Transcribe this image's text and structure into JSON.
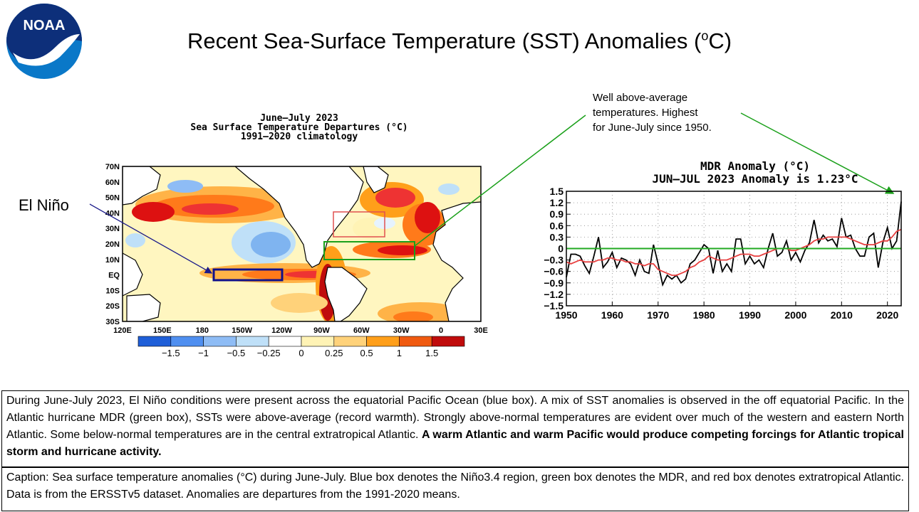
{
  "logo": {
    "text": "NOAA"
  },
  "title": {
    "text": "Recent Sea-Surface Temperature (SST) Anomalies (",
    "sup": "o",
    "end": "C)"
  },
  "map": {
    "title_lines": [
      "June–July 2023",
      "Sea Surface Temperature Departures (°C)",
      "1991–2020 climatology"
    ],
    "lat_labels": [
      "70N",
      "60N",
      "50N",
      "40N",
      "30N",
      "20N",
      "10N",
      "EQ",
      "10S",
      "20S",
      "30S"
    ],
    "lon_labels": [
      "120E",
      "150E",
      "180",
      "150W",
      "120W",
      "90W",
      "60W",
      "30W",
      "0",
      "30E"
    ],
    "colorbar": {
      "colors": [
        "#1f5fd8",
        "#4f8ff0",
        "#8ebcf5",
        "#bfe0f8",
        "#ffffff",
        "#fff3b5",
        "#ffd27a",
        "#ff9f1a",
        "#f05a10",
        "#c00c0c"
      ],
      "labels": [
        "−1.5",
        "−1",
        "−0.5",
        "−0.25",
        "0",
        "0.25",
        "0.5",
        "1",
        "1.5"
      ]
    },
    "legend_boxes": [
      "blue: Niño3.4",
      "green: MDR",
      "red: extratropical Atlantic"
    ]
  },
  "elnino_label": "El Niño",
  "note": {
    "lines": [
      "Well above-average",
      "temperatures. Highest",
      "for June-July since 1950."
    ]
  },
  "chart_data": {
    "type": "line",
    "title": "MDR Anomaly (°C)",
    "subtitle": "JUN–JUL 2023 Anomaly is 1.23°C",
    "xlabel": "",
    "ylabel": "",
    "xlim": [
      1950,
      2023
    ],
    "ylim": [
      -1.5,
      1.5
    ],
    "yticks": [
      "1.5",
      "1.2",
      "0.9",
      "0.6",
      "0.3",
      "0",
      "−0.3",
      "−0.6",
      "−0.9",
      "−1.2",
      "−1.5"
    ],
    "xticks": [
      "1950",
      "1960",
      "1970",
      "1980",
      "1990",
      "2000",
      "2010",
      "2020"
    ],
    "series": [
      {
        "color": "#000000",
        "x": [
          1950,
          1951,
          1952,
          1953,
          1954,
          1955,
          1956,
          1957,
          1958,
          1959,
          1960,
          1961,
          1962,
          1963,
          1964,
          1965,
          1966,
          1967,
          1968,
          1969,
          1970,
          1971,
          1972,
          1973,
          1974,
          1975,
          1976,
          1977,
          1978,
          1979,
          1980,
          1981,
          1982,
          1983,
          1984,
          1985,
          1986,
          1987,
          1988,
          1989,
          1990,
          1991,
          1992,
          1993,
          1994,
          1995,
          1996,
          1997,
          1998,
          1999,
          2000,
          2001,
          2002,
          2003,
          2004,
          2005,
          2006,
          2007,
          2008,
          2009,
          2010,
          2011,
          2012,
          2013,
          2014,
          2015,
          2016,
          2017,
          2018,
          2019,
          2020,
          2021,
          2022,
          2023
        ],
        "values": [
          -0.75,
          -0.15,
          -0.15,
          -0.2,
          -0.45,
          -0.65,
          -0.2,
          0.3,
          -0.5,
          -0.35,
          -0.1,
          -0.5,
          -0.25,
          -0.3,
          -0.4,
          -0.7,
          -0.3,
          -0.6,
          -0.65,
          0.1,
          -0.4,
          -0.95,
          -0.7,
          -0.8,
          -0.7,
          -0.9,
          -0.8,
          -0.4,
          -0.3,
          -0.1,
          0.1,
          0.0,
          -0.65,
          -0.05,
          -0.6,
          -0.4,
          -0.6,
          0.25,
          0.25,
          -0.4,
          -0.2,
          -0.4,
          -0.3,
          -0.5,
          0.0,
          0.4,
          -0.2,
          -0.1,
          0.2,
          -0.3,
          -0.1,
          -0.35,
          -0.05,
          0.15,
          0.75,
          0.15,
          0.35,
          0.2,
          0.25,
          0.05,
          0.8,
          0.3,
          0.35,
          0.0,
          -0.2,
          -0.2,
          0.3,
          0.4,
          -0.5,
          0.15,
          0.55,
          0.0,
          0.2,
          1.23
        ]
      },
      {
        "color": "#e84040",
        "x": [
          1950,
          1951,
          1952,
          1953,
          1954,
          1955,
          1956,
          1957,
          1958,
          1959,
          1960,
          1961,
          1962,
          1963,
          1964,
          1965,
          1966,
          1967,
          1968,
          1969,
          1970,
          1971,
          1972,
          1973,
          1974,
          1975,
          1976,
          1977,
          1978,
          1979,
          1980,
          1981,
          1982,
          1983,
          1984,
          1985,
          1986,
          1987,
          1988,
          1989,
          1990,
          1991,
          1992,
          1993,
          1994,
          1995,
          1996,
          1997,
          1998,
          1999,
          2000,
          2001,
          2002,
          2003,
          2004,
          2005,
          2006,
          2007,
          2008,
          2009,
          2010,
          2011,
          2012,
          2013,
          2014,
          2015,
          2016,
          2017,
          2018,
          2019,
          2020,
          2021,
          2022,
          2023
        ],
        "values": [
          -0.35,
          -0.4,
          -0.35,
          -0.3,
          -0.35,
          -0.35,
          -0.35,
          -0.3,
          -0.3,
          -0.25,
          -0.25,
          -0.3,
          -0.3,
          -0.35,
          -0.35,
          -0.4,
          -0.4,
          -0.45,
          -0.4,
          -0.4,
          -0.55,
          -0.6,
          -0.65,
          -0.7,
          -0.7,
          -0.65,
          -0.6,
          -0.5,
          -0.45,
          -0.35,
          -0.3,
          -0.2,
          -0.25,
          -0.3,
          -0.3,
          -0.3,
          -0.25,
          -0.2,
          -0.15,
          -0.15,
          -0.15,
          -0.2,
          -0.2,
          -0.15,
          -0.1,
          -0.05,
          0.0,
          0.0,
          0.0,
          -0.05,
          -0.05,
          0.0,
          0.05,
          0.1,
          0.2,
          0.25,
          0.25,
          0.3,
          0.3,
          0.3,
          0.3,
          0.3,
          0.25,
          0.2,
          0.15,
          0.1,
          0.1,
          0.1,
          0.15,
          0.2,
          0.2,
          0.3,
          0.45,
          0.5
        ]
      },
      {
        "color": "#22aa22",
        "x": [
          1950,
          2023
        ],
        "values": [
          0,
          0
        ]
      }
    ]
  },
  "description": {
    "text": "During June-July 2023, El Niño conditions were present across the equatorial Pacific Ocean (blue box). A mix of SST anomalies is observed in the off equatorial Pacific. In the Atlantic hurricane MDR (green box), SSTs were above-average (record warmth). Strongly above-normal temperatures are evident over much of the western and eastern North Atlantic. Some below-normal temperatures are in the central extratropical Atlantic. ",
    "bold": "A warm Atlantic and warm Pacific would produce competing forcings for Atlantic tropical storm and hurricane activity."
  },
  "caption": {
    "text": "Caption: Sea surface temperature anomalies (°C) during June-July. Blue box denotes the Niño3.4 region, green box denotes the MDR, and red box denotes extratropical Atlantic. Data is from the ERSSTv5 dataset. Anomalies are departures from the 1991-2020 means."
  }
}
